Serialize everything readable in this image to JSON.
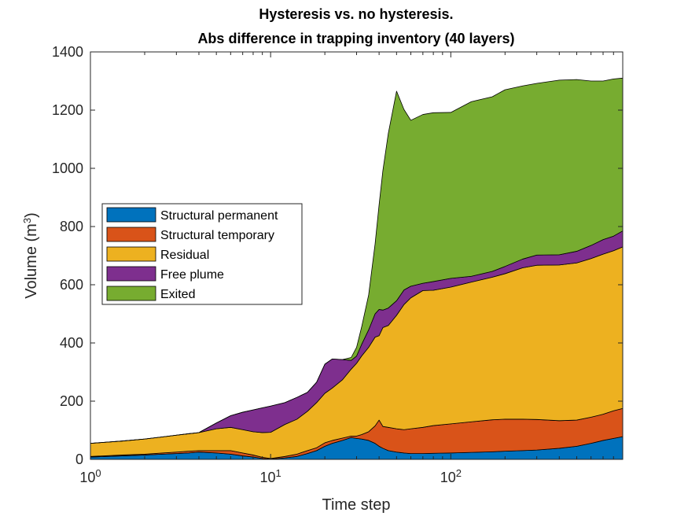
{
  "chart_data": {
    "type": "area",
    "stacked": true,
    "title_line1": "Hysteresis vs. no hysteresis.",
    "title_line2": "Abs difference in trapping inventory (40 layers)",
    "xlabel": "Time step",
    "ylabel": "Volume (m",
    "ylabel_sup": "3",
    "ylabel_close": ")",
    "xscale": "log",
    "xlim": [
      1,
      900
    ],
    "ylim": [
      0,
      1400
    ],
    "yticks": [
      0,
      200,
      400,
      600,
      800,
      1000,
      1200,
      1400
    ],
    "xticks": [
      {
        "value": 1,
        "base": "10",
        "exp": "0"
      },
      {
        "value": 10,
        "base": "10",
        "exp": "1"
      },
      {
        "value": 100,
        "base": "10",
        "exp": "2"
      }
    ],
    "legend_position": "center-left",
    "x": [
      1,
      1.5,
      2,
      2.5,
      3,
      3.5,
      4,
      5,
      6,
      7,
      8,
      9,
      10,
      12,
      14,
      16,
      18,
      20,
      22,
      25,
      28,
      30,
      32,
      35,
      38,
      40,
      42,
      45,
      50,
      55,
      60,
      70,
      80,
      100,
      130,
      170,
      200,
      250,
      300,
      400,
      500,
      600,
      700,
      800,
      900
    ],
    "series": [
      {
        "name": "Structural permanent",
        "color": "#0072BD",
        "values": [
          8,
          12,
          15,
          18,
          20,
          22,
          25,
          22,
          18,
          12,
          8,
          3,
          1,
          5,
          10,
          20,
          30,
          45,
          55,
          65,
          75,
          72,
          70,
          65,
          55,
          45,
          38,
          30,
          25,
          22,
          20,
          20,
          21,
          22,
          24,
          26,
          28,
          30,
          32,
          38,
          45,
          55,
          65,
          72,
          78
        ]
      },
      {
        "name": "Structural temporary",
        "color": "#D95319",
        "values": [
          2,
          3,
          3,
          4,
          5,
          6,
          5,
          8,
          12,
          10,
          7,
          4,
          2,
          5,
          8,
          10,
          10,
          12,
          10,
          8,
          5,
          8,
          15,
          30,
          60,
          90,
          75,
          80,
          80,
          80,
          85,
          90,
          95,
          100,
          105,
          110,
          110,
          108,
          105,
          95,
          90,
          90,
          90,
          95,
          97
        ]
      },
      {
        "name": "Residual",
        "color": "#EDB120",
        "values": [
          45,
          48,
          52,
          55,
          58,
          60,
          62,
          75,
          80,
          80,
          80,
          85,
          90,
          110,
          120,
          135,
          155,
          170,
          180,
          200,
          230,
          250,
          270,
          290,
          305,
          290,
          340,
          350,
          390,
          430,
          450,
          470,
          465,
          470,
          480,
          490,
          500,
          520,
          530,
          535,
          540,
          545,
          550,
          550,
          555
        ]
      },
      {
        "name": "Free plume",
        "color": "#7E2F8E",
        "values": [
          0,
          0,
          0,
          0,
          0,
          0,
          0,
          20,
          40,
          60,
          75,
          85,
          90,
          75,
          75,
          65,
          70,
          100,
          100,
          70,
          30,
          25,
          40,
          60,
          80,
          90,
          60,
          60,
          50,
          50,
          40,
          25,
          30,
          30,
          20,
          20,
          25,
          30,
          35,
          35,
          40,
          45,
          50,
          50,
          55
        ]
      },
      {
        "name": "Exited",
        "color": "#77AC30",
        "values": [
          0,
          0,
          0,
          0,
          0,
          0,
          0,
          0,
          0,
          0,
          0,
          0,
          0,
          0,
          0,
          0,
          0,
          0,
          0,
          0,
          10,
          30,
          60,
          120,
          240,
          360,
          480,
          600,
          720,
          620,
          570,
          580,
          580,
          570,
          600,
          600,
          607,
          595,
          590,
          600,
          590,
          565,
          545,
          540,
          525
        ]
      }
    ]
  }
}
